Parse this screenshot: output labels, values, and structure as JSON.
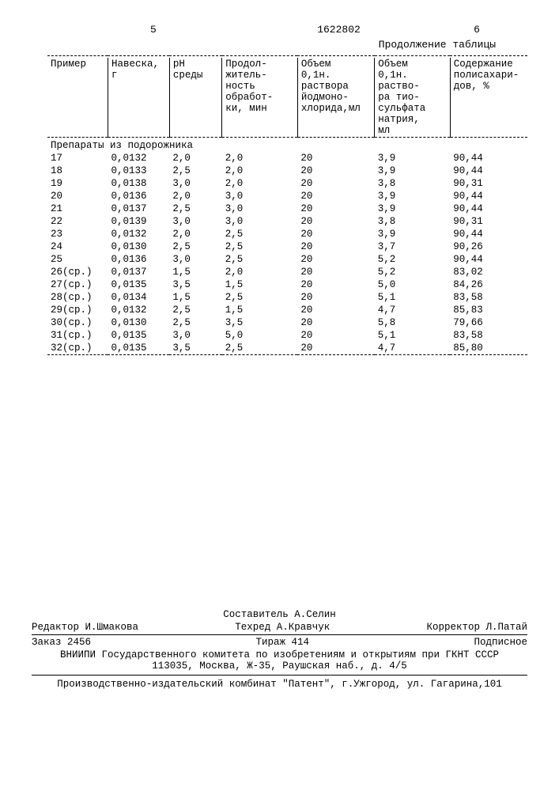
{
  "header": {
    "left_page": "5",
    "doc_number": "1622802",
    "right_page": "6",
    "continuation": "Продолжение таблицы"
  },
  "table": {
    "columns": [
      "Пример",
      "Навеска,\nг",
      "pH\nсреды",
      "Продол-\nжитель-\nность\nобработ-\nки, мин",
      "Объем\n0,1н.\nраствора\nйодмоно-\nхлорида,мл",
      "Объем\n0,1н.\nраство-\nра тио-\nсульфата\nнатрия,\nмл",
      "Содержание\nполисахари-\nдов, %"
    ],
    "section_title": "Препараты из подорожника",
    "rows": [
      [
        "17",
        "0,0132",
        "2,0",
        "2,0",
        "20",
        "3,9",
        "90,44"
      ],
      [
        "18",
        "0,0133",
        "2,5",
        "2,0",
        "20",
        "3,9",
        "90,44"
      ],
      [
        "19",
        "0,0138",
        "3,0",
        "2,0",
        "20",
        "3,8",
        "90,31"
      ],
      [
        "20",
        "0,0136",
        "2,0",
        "3,0",
        "20",
        "3,9",
        "90,44"
      ],
      [
        "21",
        "0,0137",
        "2,5",
        "3,0",
        "20",
        "3,9",
        "90,44"
      ],
      [
        "22",
        "0,0139",
        "3,0",
        "3,0",
        "20",
        "3,8",
        "90,31"
      ],
      [
        "23",
        "0,0132",
        "2,0",
        "2,5",
        "20",
        "3,9",
        "90,44"
      ],
      [
        "24",
        "0,0130",
        "2,5",
        "2,5",
        "20",
        "3,7",
        "90,26"
      ],
      [
        "25",
        "0,0136",
        "3,0",
        "2,5",
        "20",
        "5,2",
        "90,44"
      ],
      [
        "26(ср.)",
        "0,0137",
        "1,5",
        "2,0",
        "20",
        "5,2",
        "83,02"
      ],
      [
        "27(ср.)",
        "0,0135",
        "3,5",
        "1,5",
        "20",
        "5,0",
        "84,26"
      ],
      [
        "28(ср.)",
        "0,0134",
        "1,5",
        "2,5",
        "20",
        "5,1",
        "83,58"
      ],
      [
        "29(ср.)",
        "0,0132",
        "2,5",
        "1,5",
        "20",
        "4,7",
        "85,83"
      ],
      [
        "30(ср.)",
        "0,0130",
        "2,5",
        "3,5",
        "20",
        "5,8",
        "79,66"
      ],
      [
        "31(ср.)",
        "0,0135",
        "3,0",
        "5,0",
        "20",
        "5,1",
        "83,58"
      ],
      [
        "32(ср.)",
        "0,0135",
        "3,5",
        "2,5",
        "20",
        "4,7",
        "85,80"
      ]
    ]
  },
  "footer": {
    "compiler": "Составитель А.Селин",
    "editor": "Редактор И.Шмакова",
    "techred": "Техред А.Кравчук",
    "corrector": "Корректор Л.Патай",
    "order": "Заказ 2456",
    "tirazh": "Тираж 414",
    "subscription": "Подписное",
    "org1": "ВНИИПИ Государственного комитета по изобретениям и открытиям при ГКНТ СССР",
    "org2": "113035, Москва, Ж-35, Раушская наб., д. 4/5",
    "org3": "Производственно-издательский комбинат \"Патент\", г.Ужгород, ул. Гагарина,101"
  }
}
